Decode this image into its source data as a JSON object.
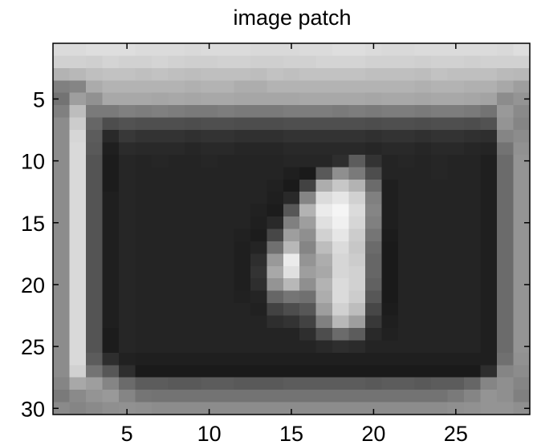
{
  "chart_data": {
    "type": "heatmap",
    "title": "image patch",
    "xlabel": "",
    "ylabel": "",
    "colormap": "gray",
    "xlim": [
      0.5,
      29.5
    ],
    "ylim": [
      30.5,
      0.5
    ],
    "y_axis_direction": "reversed",
    "xticks": [
      5,
      10,
      15,
      20,
      25
    ],
    "yticks": [
      5,
      10,
      15,
      20,
      25,
      30
    ],
    "grid": false,
    "n_cols": 29,
    "n_rows": 30,
    "values": [
      [
        0.86,
        0.86,
        0.87,
        0.87,
        0.87,
        0.86,
        0.86,
        0.86,
        0.85,
        0.86,
        0.86,
        0.86,
        0.85,
        0.85,
        0.85,
        0.86,
        0.86,
        0.87,
        0.87,
        0.86,
        0.85,
        0.85,
        0.86,
        0.86,
        0.86,
        0.86,
        0.86,
        0.85,
        0.87
      ],
      [
        0.82,
        0.82,
        0.81,
        0.83,
        0.82,
        0.82,
        0.83,
        0.82,
        0.81,
        0.81,
        0.82,
        0.82,
        0.81,
        0.81,
        0.82,
        0.82,
        0.83,
        0.83,
        0.83,
        0.82,
        0.82,
        0.82,
        0.81,
        0.82,
        0.82,
        0.81,
        0.82,
        0.82,
        0.82
      ],
      [
        0.7,
        0.72,
        0.75,
        0.76,
        0.76,
        0.75,
        0.76,
        0.75,
        0.74,
        0.75,
        0.75,
        0.75,
        0.74,
        0.76,
        0.75,
        0.76,
        0.76,
        0.76,
        0.76,
        0.75,
        0.75,
        0.75,
        0.74,
        0.76,
        0.75,
        0.75,
        0.75,
        0.73,
        0.72
      ],
      [
        0.5,
        0.52,
        0.67,
        0.7,
        0.7,
        0.7,
        0.7,
        0.7,
        0.69,
        0.7,
        0.7,
        0.68,
        0.68,
        0.7,
        0.7,
        0.7,
        0.7,
        0.7,
        0.7,
        0.7,
        0.7,
        0.7,
        0.69,
        0.7,
        0.7,
        0.69,
        0.69,
        0.66,
        0.62
      ],
      [
        0.45,
        0.62,
        0.57,
        0.66,
        0.66,
        0.66,
        0.65,
        0.66,
        0.65,
        0.66,
        0.66,
        0.65,
        0.65,
        0.65,
        0.65,
        0.66,
        0.66,
        0.66,
        0.66,
        0.65,
        0.66,
        0.66,
        0.65,
        0.66,
        0.66,
        0.65,
        0.64,
        0.55,
        0.58
      ],
      [
        0.5,
        0.74,
        0.48,
        0.48,
        0.5,
        0.49,
        0.5,
        0.49,
        0.48,
        0.48,
        0.49,
        0.48,
        0.48,
        0.48,
        0.49,
        0.49,
        0.49,
        0.48,
        0.49,
        0.48,
        0.49,
        0.49,
        0.48,
        0.49,
        0.49,
        0.48,
        0.45,
        0.6,
        0.54
      ],
      [
        0.55,
        0.8,
        0.4,
        0.3,
        0.32,
        0.31,
        0.31,
        0.31,
        0.3,
        0.31,
        0.31,
        0.3,
        0.3,
        0.3,
        0.31,
        0.31,
        0.31,
        0.31,
        0.31,
        0.3,
        0.31,
        0.31,
        0.3,
        0.31,
        0.31,
        0.3,
        0.32,
        0.58,
        0.52
      ],
      [
        0.55,
        0.84,
        0.36,
        0.16,
        0.22,
        0.2,
        0.2,
        0.2,
        0.19,
        0.2,
        0.2,
        0.19,
        0.19,
        0.19,
        0.2,
        0.2,
        0.2,
        0.2,
        0.2,
        0.19,
        0.2,
        0.2,
        0.19,
        0.2,
        0.2,
        0.19,
        0.18,
        0.52,
        0.55
      ],
      [
        0.55,
        0.85,
        0.35,
        0.12,
        0.17,
        0.16,
        0.16,
        0.16,
        0.15,
        0.16,
        0.16,
        0.15,
        0.15,
        0.15,
        0.16,
        0.16,
        0.16,
        0.16,
        0.16,
        0.15,
        0.16,
        0.16,
        0.15,
        0.16,
        0.16,
        0.15,
        0.14,
        0.45,
        0.57
      ],
      [
        0.55,
        0.85,
        0.33,
        0.11,
        0.15,
        0.14,
        0.15,
        0.14,
        0.14,
        0.15,
        0.14,
        0.14,
        0.14,
        0.14,
        0.15,
        0.15,
        0.15,
        0.18,
        0.36,
        0.2,
        0.14,
        0.15,
        0.14,
        0.15,
        0.14,
        0.14,
        0.12,
        0.42,
        0.58
      ],
      [
        0.55,
        0.85,
        0.33,
        0.11,
        0.15,
        0.14,
        0.14,
        0.14,
        0.14,
        0.14,
        0.14,
        0.14,
        0.14,
        0.14,
        0.12,
        0.1,
        0.35,
        0.56,
        0.48,
        0.3,
        0.14,
        0.14,
        0.14,
        0.15,
        0.14,
        0.14,
        0.12,
        0.42,
        0.58
      ],
      [
        0.55,
        0.85,
        0.33,
        0.11,
        0.15,
        0.14,
        0.14,
        0.14,
        0.14,
        0.14,
        0.14,
        0.14,
        0.14,
        0.13,
        0.1,
        0.26,
        0.68,
        0.78,
        0.7,
        0.42,
        0.12,
        0.14,
        0.14,
        0.14,
        0.14,
        0.14,
        0.12,
        0.42,
        0.58
      ],
      [
        0.55,
        0.85,
        0.33,
        0.12,
        0.15,
        0.14,
        0.14,
        0.14,
        0.14,
        0.14,
        0.14,
        0.14,
        0.14,
        0.12,
        0.16,
        0.52,
        0.86,
        0.9,
        0.82,
        0.5,
        0.12,
        0.14,
        0.14,
        0.14,
        0.14,
        0.14,
        0.12,
        0.42,
        0.58
      ],
      [
        0.55,
        0.85,
        0.33,
        0.12,
        0.15,
        0.14,
        0.14,
        0.14,
        0.14,
        0.14,
        0.14,
        0.14,
        0.13,
        0.11,
        0.34,
        0.7,
        0.92,
        0.96,
        0.86,
        0.52,
        0.12,
        0.14,
        0.14,
        0.14,
        0.14,
        0.14,
        0.12,
        0.42,
        0.58
      ],
      [
        0.55,
        0.85,
        0.33,
        0.12,
        0.15,
        0.14,
        0.14,
        0.14,
        0.14,
        0.14,
        0.14,
        0.14,
        0.12,
        0.16,
        0.5,
        0.62,
        0.88,
        0.94,
        0.84,
        0.5,
        0.12,
        0.14,
        0.14,
        0.14,
        0.14,
        0.14,
        0.12,
        0.42,
        0.58
      ],
      [
        0.55,
        0.85,
        0.33,
        0.12,
        0.15,
        0.14,
        0.14,
        0.14,
        0.14,
        0.14,
        0.14,
        0.13,
        0.11,
        0.28,
        0.62,
        0.56,
        0.82,
        0.9,
        0.8,
        0.46,
        0.11,
        0.14,
        0.14,
        0.14,
        0.14,
        0.14,
        0.12,
        0.42,
        0.58
      ],
      [
        0.55,
        0.85,
        0.33,
        0.12,
        0.15,
        0.14,
        0.14,
        0.14,
        0.14,
        0.14,
        0.14,
        0.12,
        0.14,
        0.44,
        0.72,
        0.52,
        0.74,
        0.86,
        0.78,
        0.42,
        0.1,
        0.14,
        0.14,
        0.14,
        0.14,
        0.14,
        0.12,
        0.42,
        0.58
      ],
      [
        0.55,
        0.85,
        0.33,
        0.12,
        0.15,
        0.14,
        0.14,
        0.14,
        0.14,
        0.14,
        0.14,
        0.12,
        0.18,
        0.6,
        0.92,
        0.58,
        0.68,
        0.84,
        0.8,
        0.4,
        0.1,
        0.14,
        0.14,
        0.14,
        0.14,
        0.14,
        0.12,
        0.42,
        0.58
      ],
      [
        0.55,
        0.85,
        0.33,
        0.12,
        0.15,
        0.14,
        0.14,
        0.14,
        0.14,
        0.14,
        0.14,
        0.12,
        0.2,
        0.66,
        0.88,
        0.62,
        0.66,
        0.84,
        0.82,
        0.4,
        0.1,
        0.14,
        0.14,
        0.14,
        0.14,
        0.14,
        0.12,
        0.42,
        0.58
      ],
      [
        0.55,
        0.85,
        0.33,
        0.12,
        0.15,
        0.14,
        0.14,
        0.14,
        0.14,
        0.14,
        0.14,
        0.12,
        0.18,
        0.58,
        0.72,
        0.56,
        0.7,
        0.86,
        0.82,
        0.38,
        0.1,
        0.14,
        0.14,
        0.14,
        0.14,
        0.14,
        0.12,
        0.42,
        0.58
      ],
      [
        0.55,
        0.85,
        0.33,
        0.12,
        0.15,
        0.14,
        0.14,
        0.14,
        0.14,
        0.14,
        0.14,
        0.13,
        0.14,
        0.4,
        0.46,
        0.44,
        0.68,
        0.86,
        0.8,
        0.34,
        0.1,
        0.14,
        0.14,
        0.14,
        0.14,
        0.14,
        0.12,
        0.42,
        0.58
      ],
      [
        0.55,
        0.85,
        0.33,
        0.12,
        0.15,
        0.14,
        0.14,
        0.14,
        0.14,
        0.14,
        0.14,
        0.14,
        0.13,
        0.26,
        0.3,
        0.34,
        0.62,
        0.82,
        0.74,
        0.28,
        0.11,
        0.14,
        0.14,
        0.14,
        0.14,
        0.14,
        0.12,
        0.42,
        0.58
      ],
      [
        0.55,
        0.85,
        0.33,
        0.12,
        0.15,
        0.14,
        0.14,
        0.14,
        0.14,
        0.14,
        0.14,
        0.14,
        0.14,
        0.18,
        0.2,
        0.26,
        0.5,
        0.72,
        0.62,
        0.22,
        0.12,
        0.14,
        0.14,
        0.14,
        0.14,
        0.14,
        0.12,
        0.42,
        0.58
      ],
      [
        0.55,
        0.85,
        0.33,
        0.11,
        0.15,
        0.14,
        0.14,
        0.14,
        0.14,
        0.14,
        0.14,
        0.14,
        0.14,
        0.14,
        0.14,
        0.18,
        0.3,
        0.42,
        0.36,
        0.16,
        0.13,
        0.14,
        0.14,
        0.14,
        0.14,
        0.14,
        0.12,
        0.42,
        0.58
      ],
      [
        0.55,
        0.85,
        0.33,
        0.11,
        0.15,
        0.14,
        0.14,
        0.14,
        0.14,
        0.14,
        0.14,
        0.14,
        0.14,
        0.14,
        0.14,
        0.14,
        0.16,
        0.18,
        0.17,
        0.14,
        0.14,
        0.14,
        0.14,
        0.14,
        0.14,
        0.14,
        0.12,
        0.42,
        0.58
      ],
      [
        0.55,
        0.85,
        0.36,
        0.18,
        0.13,
        0.12,
        0.12,
        0.12,
        0.12,
        0.12,
        0.12,
        0.12,
        0.12,
        0.12,
        0.12,
        0.12,
        0.12,
        0.12,
        0.12,
        0.12,
        0.12,
        0.12,
        0.12,
        0.12,
        0.12,
        0.12,
        0.12,
        0.44,
        0.57
      ],
      [
        0.55,
        0.82,
        0.45,
        0.34,
        0.18,
        0.1,
        0.1,
        0.1,
        0.1,
        0.1,
        0.1,
        0.1,
        0.1,
        0.1,
        0.1,
        0.1,
        0.1,
        0.1,
        0.1,
        0.1,
        0.1,
        0.1,
        0.1,
        0.1,
        0.1,
        0.1,
        0.18,
        0.52,
        0.55
      ],
      [
        0.52,
        0.66,
        0.62,
        0.52,
        0.42,
        0.36,
        0.36,
        0.35,
        0.35,
        0.36,
        0.36,
        0.35,
        0.35,
        0.35,
        0.36,
        0.36,
        0.36,
        0.36,
        0.36,
        0.35,
        0.36,
        0.36,
        0.35,
        0.36,
        0.36,
        0.4,
        0.52,
        0.56,
        0.52
      ],
      [
        0.48,
        0.54,
        0.58,
        0.6,
        0.52,
        0.46,
        0.45,
        0.45,
        0.45,
        0.45,
        0.45,
        0.45,
        0.45,
        0.45,
        0.45,
        0.45,
        0.45,
        0.45,
        0.45,
        0.45,
        0.45,
        0.45,
        0.45,
        0.45,
        0.48,
        0.52,
        0.58,
        0.56,
        0.5
      ],
      [
        0.54,
        0.52,
        0.54,
        0.56,
        0.57,
        0.56,
        0.55,
        0.55,
        0.55,
        0.55,
        0.55,
        0.55,
        0.55,
        0.55,
        0.55,
        0.55,
        0.55,
        0.55,
        0.55,
        0.55,
        0.55,
        0.55,
        0.55,
        0.55,
        0.56,
        0.57,
        0.58,
        0.58,
        0.56
      ]
    ]
  }
}
